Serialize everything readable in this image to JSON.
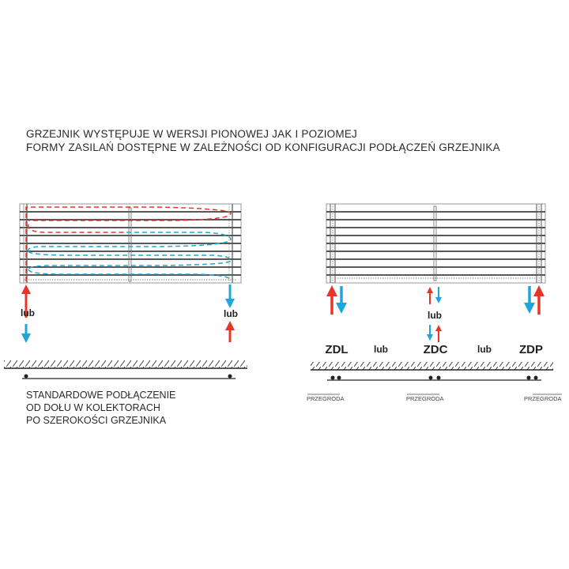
{
  "header": {
    "line1": "GRZEJNIK WYSTĘPUJE W WERSJI PIONOWEJ JAK I POZIOMEJ",
    "line2": "FORMY ZASILAŃ DOSTĘPNE W ZALEŻNOŚCI OD KONFIGURACJI PODŁĄCZEŃ GRZEJNIKA"
  },
  "left_diagram": {
    "caption": [
      "STANDARDOWE PODŁĄCZENIE",
      "OD DOŁU W KOLEKTORACH",
      "PO SZEROKOŚCI GRZEJNIKA"
    ],
    "or_left": "lub",
    "or_right": "lub"
  },
  "right_diagram": {
    "center_or": "lub",
    "labels": [
      "ZDL",
      "lub",
      "ZDC",
      "lub",
      "ZDP"
    ],
    "partition": [
      "PRZEGRODA",
      "PRZEGRODA",
      "PRZEGRODA"
    ]
  },
  "colors": {
    "supply": "#e8352a",
    "return": "#1ea6dc",
    "line": "#222222"
  }
}
